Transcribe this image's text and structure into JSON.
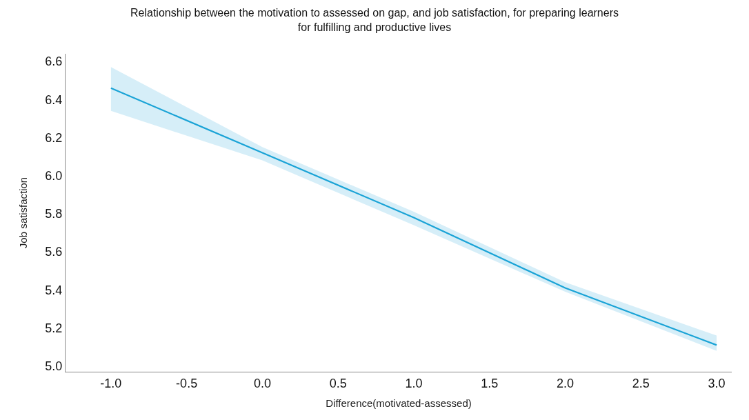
{
  "chart_data": {
    "type": "line",
    "title": "Relationship between the motivation to assessed on gap, and job satisfaction, for preparing learners\nfor fulfilling and productive lives",
    "xlabel": "Difference(motivated-assessed)",
    "ylabel": "Job satisfaction",
    "x": [
      -1.0,
      0.0,
      1.0,
      2.0,
      3.0
    ],
    "series": [
      {
        "color": "#1aa3d6",
        "values": [
          6.46,
          6.12,
          5.78,
          5.41,
          5.11
        ],
        "lower": [
          6.34,
          6.08,
          5.74,
          5.39,
          5.08
        ],
        "upper": [
          6.57,
          6.15,
          5.81,
          5.44,
          5.16
        ]
      }
    ],
    "xlim": [
      -1.3,
      3.1
    ],
    "ylim": [
      4.97,
      6.64
    ],
    "xticks": [
      {
        "value": -1.0,
        "label": "-1.0"
      },
      {
        "value": -0.5,
        "label": "-0.5"
      },
      {
        "value": 0.0,
        "label": "0.0"
      },
      {
        "value": 0.5,
        "label": "0.5"
      },
      {
        "value": 1.0,
        "label": "1.0"
      },
      {
        "value": 1.5,
        "label": "1.5"
      },
      {
        "value": 2.0,
        "label": "2.0"
      },
      {
        "value": 2.5,
        "label": "2.5"
      },
      {
        "value": 3.0,
        "label": "3.0"
      }
    ],
    "yticks": [
      {
        "value": 5.0,
        "label": "5.0"
      },
      {
        "value": 5.2,
        "label": "5.2"
      },
      {
        "value": 5.4,
        "label": "5.4"
      },
      {
        "value": 5.6,
        "label": "5.6"
      },
      {
        "value": 5.8,
        "label": "5.8"
      },
      {
        "value": 6.0,
        "label": "6.0"
      },
      {
        "value": 6.2,
        "label": "6.2"
      },
      {
        "value": 6.4,
        "label": "6.4"
      },
      {
        "value": 6.6,
        "label": "6.6"
      }
    ],
    "marker": "none",
    "line_style": "solid"
  }
}
